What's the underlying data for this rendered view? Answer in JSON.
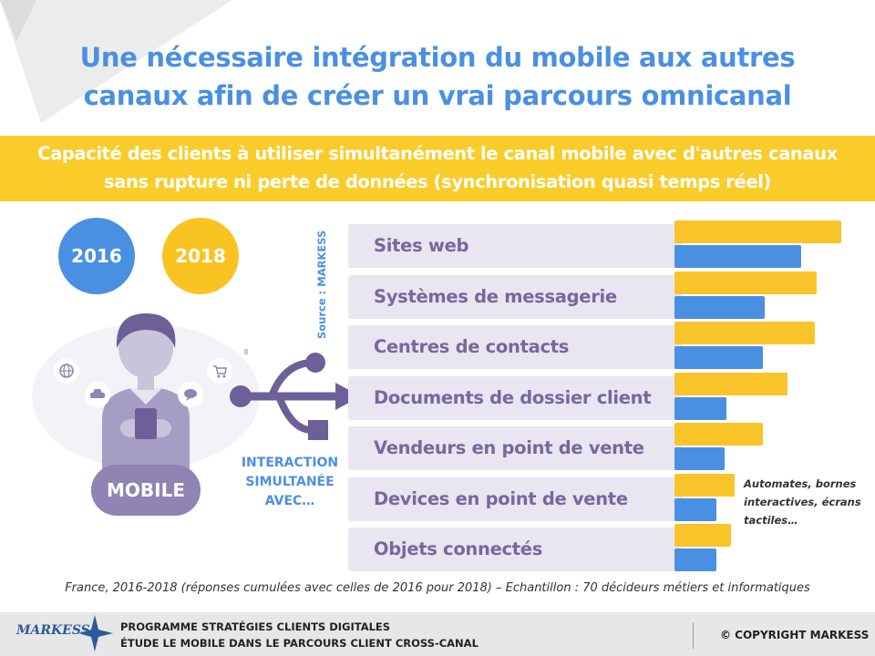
{
  "title": {
    "line1": "Une nécessaire intégration du mobile aux autres",
    "line2": "canaux afin de créer un vrai parcours omnicanal"
  },
  "subtitle": {
    "line1": "Capacité des clients à utiliser simultanément le canal mobile avec d'autres canaux",
    "line2": "sans rupture ni perte de données (synchronisation quasi temps réel)"
  },
  "legend": {
    "year1": "2016",
    "year2": "2018"
  },
  "colors": {
    "2016": "#4a90e2",
    "2018": "#f9c42a",
    "title": "#4a90e2",
    "band": "#f9cc2a",
    "purple": "#75699c"
  },
  "illustration": {
    "mobile_label": "MOBILE",
    "interaction_line1": "INTERACTION",
    "interaction_line2": "SIMULTANÉE",
    "interaction_line3": "AVEC…",
    "icons": [
      "globe-icon",
      "car-icon",
      "chat-icon",
      "cart-icon",
      "phone-icon",
      "usb-icon"
    ]
  },
  "source": "Source : MARKESS",
  "chart_data": {
    "type": "bar",
    "orientation": "horizontal",
    "categories": [
      "Sites web",
      "Systèmes de messagerie",
      "Centres de contacts",
      "Documents de dossier client",
      "Vendeurs en point de vente",
      "Devices en point de vente",
      "Objets connectés"
    ],
    "series": [
      {
        "name": "2018",
        "color": "#f9c42a",
        "values": [
          100,
          85,
          84,
          68,
          53,
          36,
          34
        ]
      },
      {
        "name": "2016",
        "color": "#4a90e2",
        "values": [
          76,
          54,
          53,
          31,
          30,
          25,
          25
        ]
      }
    ],
    "scale": "relative, no axis printed",
    "grid": false
  },
  "note": {
    "line1": "Automates, bornes",
    "line2": "interactives, écrans",
    "line3": "tactiles…"
  },
  "footnote": "France, 2016-2018 (réponses cumulées avec celles de 2016 pour 2018) – Echantillon : 70 décideurs métiers et informatiques",
  "footer": {
    "logo": "MARKESS",
    "line1": "PROGRAMME STRATÉGIES CLIENTS DIGITALES",
    "line2": "ÉTUDE LE MOBILE DANS LE PARCOURS CLIENT CROSS-CANAL",
    "copyright": "© COPYRIGHT MARKESS"
  }
}
